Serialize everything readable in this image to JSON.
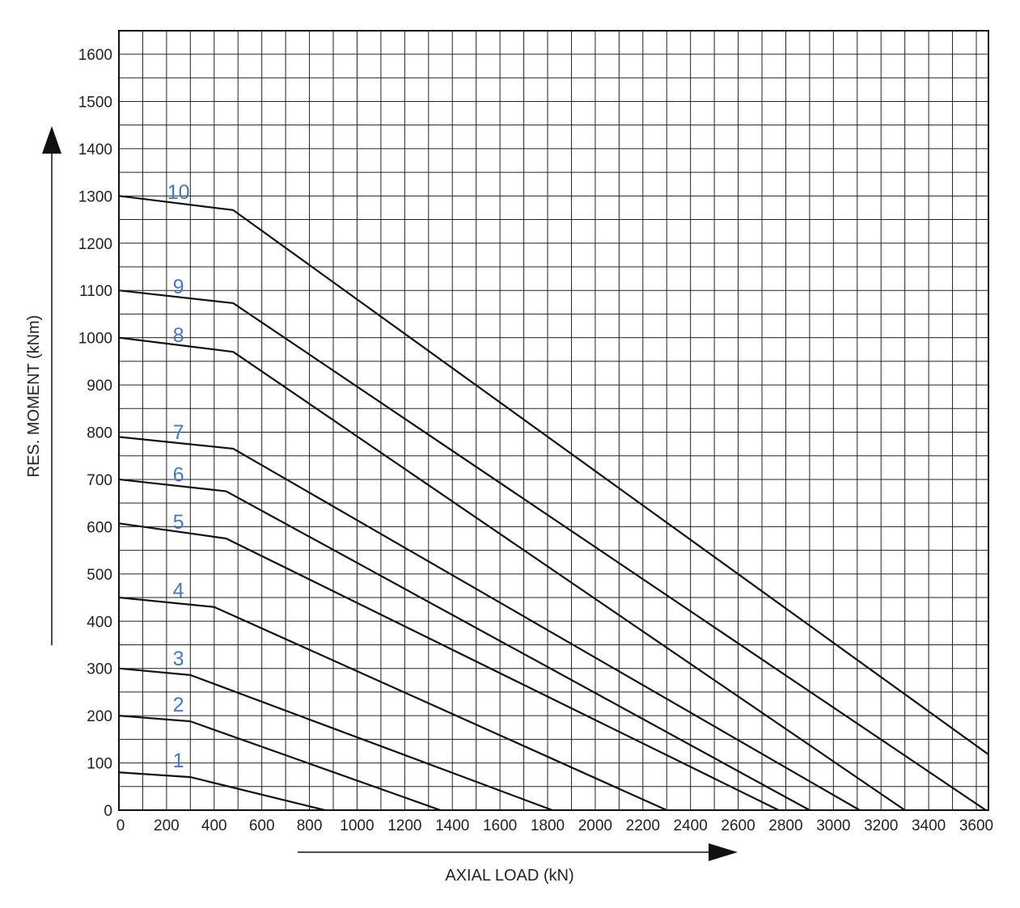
{
  "chart_data": {
    "type": "line",
    "xlabel": "AXIAL LOAD (kN)",
    "ylabel": "RES. MOMENT (kNm)",
    "xlim": [
      0,
      3700
    ],
    "ylim": [
      0,
      1650
    ],
    "grid": true,
    "x_ticks": [
      "0",
      "200",
      "400",
      "600",
      "800",
      "1000",
      "1200",
      "1400",
      "1600",
      "1800",
      "2000",
      "2200",
      "2400",
      "2600",
      "2800",
      "3000",
      "3200",
      "3400",
      "3600"
    ],
    "y_ticks": [
      "0",
      "100",
      "200",
      "300",
      "400",
      "500",
      "600",
      "700",
      "800",
      "900",
      "1000",
      "1100",
      "1200",
      "1300",
      "1400",
      "1500",
      "1600"
    ],
    "series": [
      {
        "name": "1",
        "points": [
          [
            0,
            80
          ],
          [
            300,
            70
          ],
          [
            865,
            0
          ]
        ]
      },
      {
        "name": "2",
        "points": [
          [
            0,
            200
          ],
          [
            300,
            188
          ],
          [
            1350,
            0
          ]
        ]
      },
      {
        "name": "3",
        "points": [
          [
            0,
            300
          ],
          [
            300,
            286
          ],
          [
            1820,
            0
          ]
        ]
      },
      {
        "name": "4",
        "points": [
          [
            0,
            450
          ],
          [
            400,
            430
          ],
          [
            2300,
            0
          ]
        ]
      },
      {
        "name": "5",
        "points": [
          [
            0,
            607
          ],
          [
            450,
            575
          ],
          [
            2770,
            0
          ]
        ]
      },
      {
        "name": "6",
        "points": [
          [
            0,
            700
          ],
          [
            450,
            675
          ],
          [
            2900,
            0
          ]
        ]
      },
      {
        "name": "7",
        "points": [
          [
            0,
            790
          ],
          [
            480,
            765
          ],
          [
            3110,
            0
          ]
        ]
      },
      {
        "name": "8",
        "points": [
          [
            0,
            1000
          ],
          [
            480,
            970
          ],
          [
            3300,
            0
          ]
        ]
      },
      {
        "name": "9",
        "points": [
          [
            0,
            1100
          ],
          [
            480,
            1073
          ],
          [
            3640,
            0
          ]
        ]
      },
      {
        "name": "10",
        "points": [
          [
            0,
            1300
          ],
          [
            480,
            1270
          ],
          [
            3700,
            100
          ]
        ]
      }
    ]
  }
}
